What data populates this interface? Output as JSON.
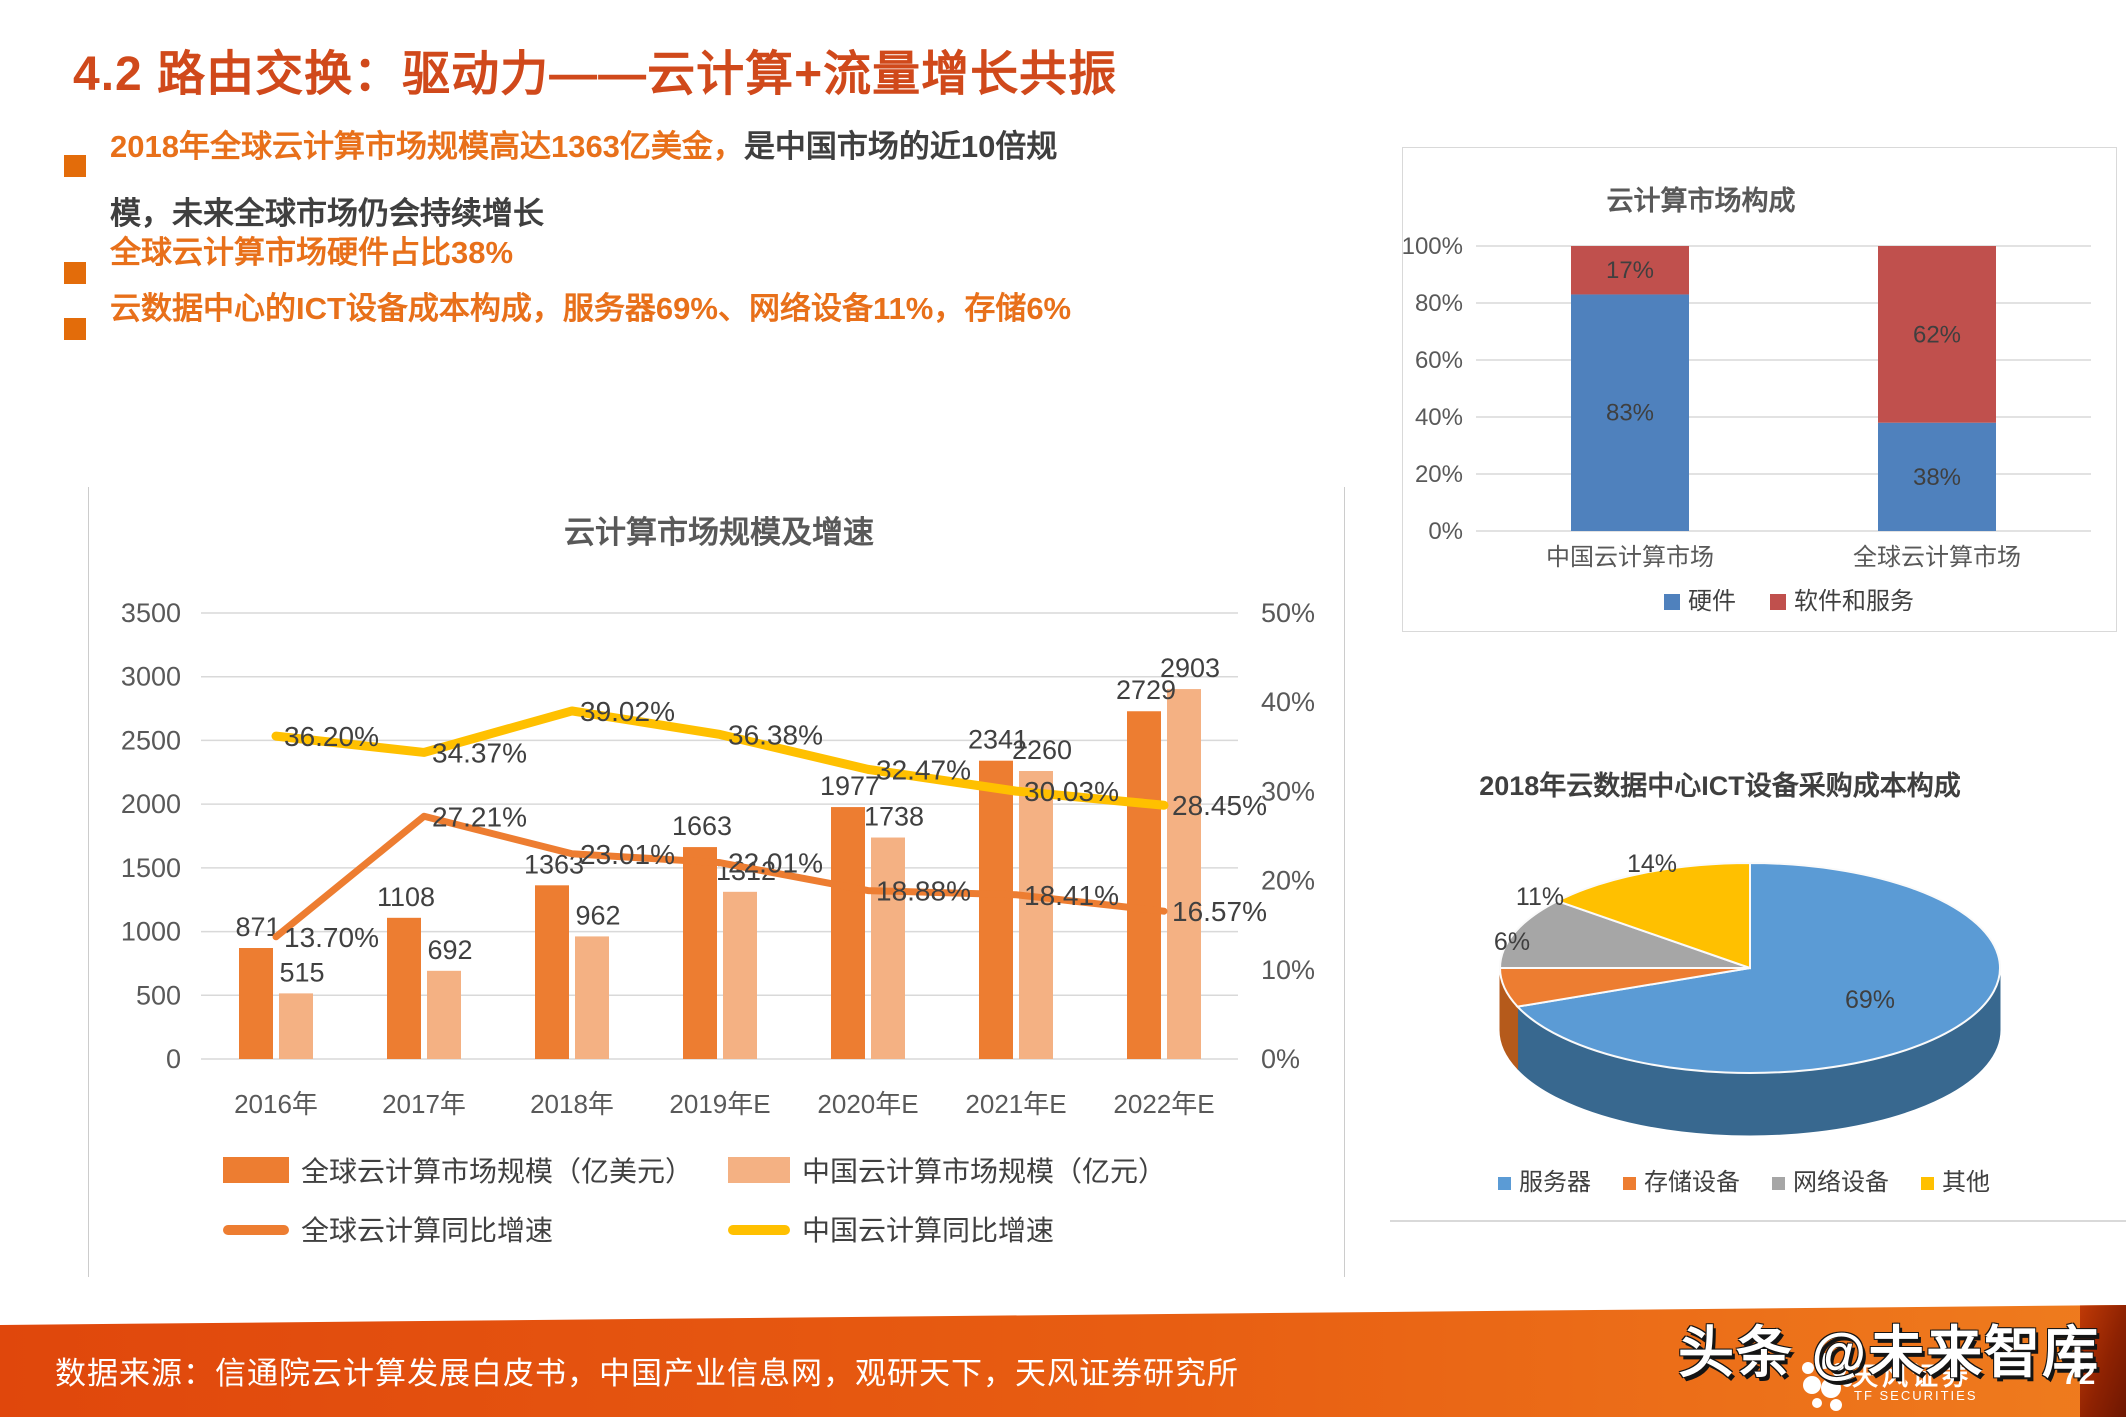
{
  "page": {
    "title": "4.2 路由交换：驱动力——云计算+流量增长共振",
    "page_number": "72",
    "watermark": "头条 @未来智库",
    "logo": {
      "cn": "天风证券",
      "en": "TF SECURITIES"
    }
  },
  "bullets": [
    {
      "highlight": "2018年全球云计算市场规模高达1363亿美金，",
      "rest_line1": "是中国市场的近10倍规",
      "line2": "模，未来全球市场仍会持续增长"
    },
    {
      "text": "全球云计算市场硬件占比38%"
    },
    {
      "text": "云数据中心的ICT设备成本构成，服务器69%、网络设备11%，存储6%"
    }
  ],
  "footer": {
    "source": "数据来源：信通院云计算发展白皮书，中国产业信息网，观研天下，天风证券研究所"
  },
  "theme": {
    "title_color": "#D0491B",
    "bullet_orange": "#E8701A",
    "footer_gradient_left": "#E0470C",
    "footer_gradient_right": "#EF7C1E"
  },
  "chart_data": [
    {
      "type": "bar",
      "subtype": "combo-bar-line-dual-axis",
      "title": "云计算市场规模及增速",
      "categories": [
        "2016年",
        "2017年",
        "2018年",
        "2019年E",
        "2020年E",
        "2021年E",
        "2022年E"
      ],
      "bar_series": [
        {
          "name": "全球云计算市场规模（亿美元）",
          "color": "#ED7D31",
          "values": [
            871,
            1108,
            1363,
            1663,
            1977,
            2341,
            2729
          ],
          "labels": [
            "871",
            "1108",
            "1363",
            "1663",
            "1977",
            "2341",
            "2729"
          ]
        },
        {
          "name": "中国云计算市场规模（亿元）",
          "color": "#F4B183",
          "values": [
            515,
            692,
            962,
            1312,
            1738,
            2260,
            2903
          ],
          "labels": [
            "515",
            "692",
            "962",
            "1312",
            "1738",
            "2260",
            "2903"
          ]
        }
      ],
      "line_series": [
        {
          "name": "全球云计算同比增速",
          "color": "#ED7D31",
          "values_pct": [
            13.7,
            27.21,
            23.01,
            22.01,
            18.88,
            18.41,
            16.57
          ],
          "labels": [
            "13.70%",
            "27.21%",
            "23.01%",
            "22.01%",
            "18.88%",
            "18.41%",
            "16.57%"
          ]
        },
        {
          "name": "中国云计算同比增速",
          "color": "#FFC000",
          "values_pct": [
            36.2,
            34.37,
            39.02,
            36.38,
            32.47,
            30.03,
            28.45
          ],
          "labels": [
            "36.20%",
            "34.37%",
            "39.02%",
            "36.38%",
            "32.47%",
            "30.03%",
            "28.45%"
          ]
        }
      ],
      "left_axis": {
        "min": 0,
        "max": 3500,
        "step": 500,
        "tick_labels": [
          "0",
          "500",
          "1000",
          "1500",
          "2000",
          "2500",
          "3000",
          "3500"
        ]
      },
      "right_axis": {
        "min": 0,
        "max": 50,
        "step": 10,
        "tick_labels": [
          "0%",
          "10%",
          "20%",
          "30%",
          "40%",
          "50%"
        ]
      },
      "grid": true,
      "legend_position": "bottom"
    },
    {
      "type": "bar",
      "subtype": "stacked-percent",
      "title": "云计算市场构成",
      "categories": [
        "中国云计算市场",
        "全球云计算市场"
      ],
      "series": [
        {
          "name": "硬件",
          "color": "#4F81BD",
          "values": [
            83,
            38
          ]
        },
        {
          "name": "软件和服务",
          "color": "#C0504D",
          "values": [
            17,
            62
          ]
        }
      ],
      "value_labels": [
        [
          "83%",
          "17%"
        ],
        [
          "38%",
          "62%"
        ]
      ],
      "y_axis": {
        "min": 0,
        "max": 100,
        "step": 20,
        "tick_labels": [
          "0%",
          "20%",
          "40%",
          "60%",
          "80%",
          "100%"
        ]
      },
      "grid": true,
      "legend_position": "bottom"
    },
    {
      "type": "pie",
      "subtype": "pie-3d",
      "title": "2018年云数据中心ICT设备采购成本构成",
      "slices": [
        {
          "label": "服务器",
          "pct": 69,
          "pct_label": "69%",
          "color": "#5B9BD5",
          "dark": "#38688F"
        },
        {
          "label": "存储设备",
          "pct": 6,
          "pct_label": "6%",
          "color": "#ED7D31",
          "dark": "#B55A1B"
        },
        {
          "label": "网络设备",
          "pct": 11,
          "pct_label": "11%",
          "color": "#A6A6A6",
          "dark": "#7F7F7F"
        },
        {
          "label": "其他",
          "pct": 14,
          "pct_label": "14%",
          "color": "#FFC000",
          "dark": "#BF9000"
        }
      ],
      "legend_position": "bottom"
    }
  ]
}
